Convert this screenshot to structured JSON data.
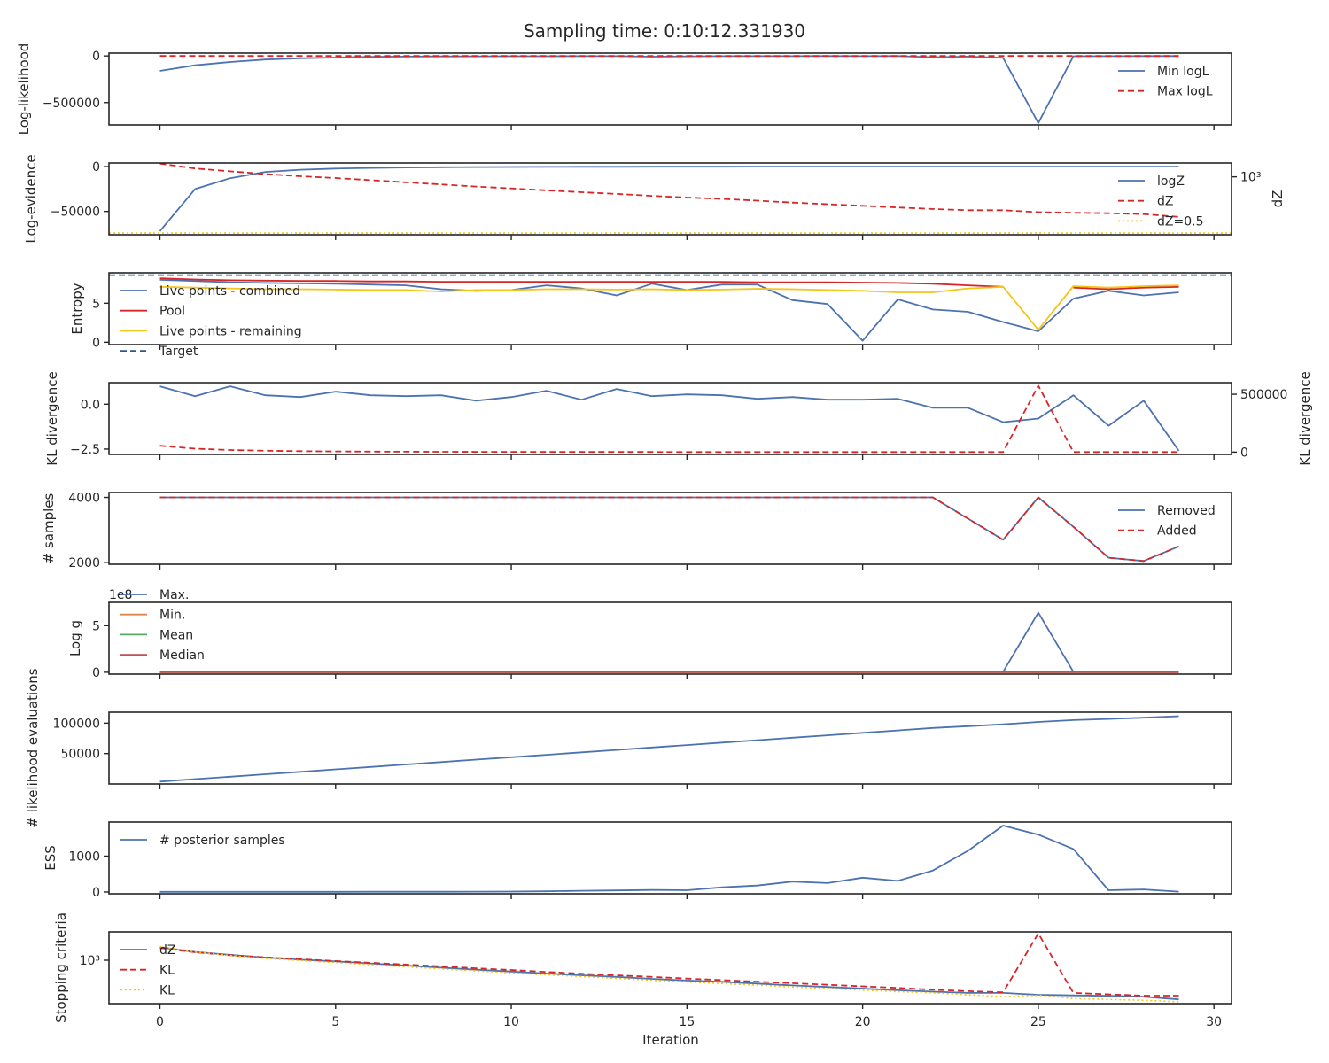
{
  "title": "Sampling time: 0:10:12.331930",
  "xlabel": "Iteration",
  "x_ticks": [
    0,
    5,
    10,
    15,
    20,
    25,
    30
  ],
  "colors": {
    "blue": "#4c72b0",
    "red": "#d62728",
    "gold": "#f5c518",
    "orange": "#dd8452",
    "green": "#55a868",
    "crimson": "#c44e52",
    "navy": "#2e5a8a",
    "axis": "#262626"
  },
  "chart_data": [
    {
      "type": "line",
      "ylabel": "Log-likelihood",
      "yticks": [
        "0",
        "−500000"
      ],
      "ytick_values": [
        0,
        -500000
      ],
      "ylim": [
        -740000,
        30000
      ],
      "legend_position": "right",
      "series": [
        {
          "name": "Min logL",
          "color": "blue",
          "dash": "solid",
          "values": [
            -160000,
            -100000,
            -65000,
            -38000,
            -25000,
            -18000,
            -10000,
            -7000,
            -5000,
            -4000,
            -3000,
            -3000,
            -2500,
            -2500,
            -8000,
            -4000,
            -2000,
            -2000,
            -2000,
            -1500,
            -2000,
            -1500,
            -14000,
            -7000,
            -20000,
            -720000,
            -3000,
            -2000,
            -1500,
            -1500
          ]
        },
        {
          "name": "Max logL",
          "color": "red",
          "dash": "dashed",
          "values": [
            0,
            0,
            0,
            0,
            0,
            0,
            0,
            0,
            0,
            0,
            0,
            0,
            0,
            0,
            0,
            0,
            0,
            0,
            0,
            0,
            0,
            0,
            0,
            0,
            0,
            0,
            0,
            0,
            0,
            0
          ]
        }
      ]
    },
    {
      "type": "line",
      "ylabel": "Log-evidence",
      "yticks": [
        "0",
        "−50000"
      ],
      "ytick_values": [
        0,
        -50000
      ],
      "ylim": [
        -76000,
        4000
      ],
      "right_ylabel": "dZ",
      "right_tick_label": "10³",
      "right_scale": "log",
      "legend_position": "right",
      "series": [
        {
          "name": "logZ",
          "color": "blue",
          "dash": "solid",
          "axis": "left",
          "values": [
            -72000,
            -25000,
            -13000,
            -6000,
            -3500,
            -2200,
            -1500,
            -1000,
            -700,
            -500,
            -400,
            -300,
            -250,
            -200,
            -150,
            -120,
            -100,
            -80,
            -70,
            -60,
            -50,
            -45,
            -40,
            -35,
            -30,
            -28,
            -26,
            -25,
            -24,
            -23
          ]
        },
        {
          "name": "dZ",
          "color": "red",
          "dash": "dashed",
          "axis": "right",
          "values": [
            6000,
            3100,
            2100,
            1450,
            1080,
            850,
            640,
            480,
            360,
            270,
            210,
            160,
            125,
            100,
            77,
            61,
            51,
            40,
            31,
            25,
            20,
            16,
            13,
            11,
            11,
            8.5,
            7.8,
            7.3,
            6.5,
            4.5
          ]
        },
        {
          "name": "dZ=0.5",
          "color": "gold",
          "dash": "dotted",
          "axis": "right",
          "constant": true,
          "values": [
            0.5,
            0.5,
            0.5,
            0.5,
            0.5,
            0.5,
            0.5,
            0.5,
            0.5,
            0.5,
            0.5,
            0.5,
            0.5,
            0.5,
            0.5,
            0.5,
            0.5,
            0.5,
            0.5,
            0.5,
            0.5,
            0.5,
            0.5,
            0.5,
            0.5,
            0.5,
            0.5,
            0.5,
            0.5,
            0.5
          ]
        }
      ]
    },
    {
      "type": "line",
      "ylabel": "Entropy",
      "yticks": [
        "0",
        "5"
      ],
      "ytick_values": [
        0,
        5
      ],
      "ylim": [
        -0.3,
        8.9
      ],
      "legend_position": "left",
      "series": [
        {
          "name": "Live points - combined",
          "color": "blue",
          "dash": "solid",
          "values": [
            8.0,
            7.85,
            7.7,
            7.6,
            7.55,
            7.5,
            7.4,
            7.3,
            6.8,
            6.6,
            6.7,
            7.3,
            6.9,
            6.0,
            7.5,
            6.7,
            7.4,
            7.4,
            5.4,
            4.9,
            0.2,
            5.5,
            4.2,
            3.9,
            2.6,
            1.4,
            5.6,
            6.6,
            6.0,
            6.4
          ]
        },
        {
          "name": "Pool",
          "color": "red",
          "dash": "solid",
          "values": [
            8.2,
            8.05,
            7.95,
            7.9,
            7.85,
            7.85,
            7.8,
            7.8,
            7.75,
            7.75,
            7.75,
            7.75,
            7.75,
            7.75,
            7.75,
            7.75,
            7.75,
            7.7,
            7.7,
            7.7,
            7.65,
            7.6,
            7.5,
            7.3,
            7.1,
            null,
            7.0,
            6.8,
            7.0,
            7.1
          ]
        },
        {
          "name": "Live points - remaining",
          "color": "gold",
          "dash": "solid",
          "values": [
            7.1,
            7.0,
            6.9,
            6.8,
            6.8,
            6.75,
            6.7,
            6.7,
            6.5,
            6.7,
            6.7,
            6.8,
            6.8,
            6.75,
            6.8,
            6.7,
            6.75,
            6.85,
            6.8,
            6.7,
            6.6,
            6.4,
            6.4,
            6.9,
            7.1,
            1.6,
            7.2,
            7.0,
            7.2,
            7.3
          ]
        },
        {
          "name": "Target",
          "color": "navy",
          "dash": "dashed",
          "constant": true,
          "values": [
            8.6,
            8.6,
            8.6,
            8.6,
            8.6,
            8.6,
            8.6,
            8.6,
            8.6,
            8.6,
            8.6,
            8.6,
            8.6,
            8.6,
            8.6,
            8.6,
            8.6,
            8.6,
            8.6,
            8.6,
            8.6,
            8.6,
            8.6,
            8.6,
            8.6,
            8.6,
            8.6,
            8.6,
            8.6,
            8.6
          ]
        }
      ]
    },
    {
      "type": "line",
      "ylabel": "KL divergence",
      "yticks": [
        "0.0",
        "−2.5"
      ],
      "ytick_values": [
        0,
        -2.5
      ],
      "ylim": [
        -2.8,
        1.2
      ],
      "right_ylabel": "KL divergence",
      "right_yticks": [
        "500000",
        "0"
      ],
      "right_ytick_values": [
        500000,
        0
      ],
      "right_ylim": [
        -20000,
        600000
      ],
      "series": [
        {
          "color": "blue",
          "dash": "solid",
          "axis": "left",
          "values": [
            1.0,
            0.45,
            1.0,
            0.5,
            0.4,
            0.7,
            0.5,
            0.45,
            0.5,
            0.2,
            0.4,
            0.75,
            0.25,
            0.85,
            0.45,
            0.55,
            0.5,
            0.3,
            0.4,
            0.25,
            0.25,
            0.3,
            -0.2,
            -0.2,
            -1.0,
            -0.8,
            0.5,
            -1.2,
            0.2,
            -2.6
          ]
        },
        {
          "color": "red",
          "dash": "dashed",
          "axis": "right",
          "values": [
            55000,
            30000,
            18000,
            12000,
            8000,
            6000,
            4500,
            3500,
            3000,
            2500,
            2000,
            1800,
            1500,
            1300,
            1100,
            1000,
            900,
            800,
            700,
            600,
            500,
            450,
            400,
            350,
            300,
            575000,
            500,
            400,
            350,
            300
          ]
        }
      ]
    },
    {
      "type": "line",
      "ylabel": "# samples",
      "yticks": [
        "4000",
        "2000"
      ],
      "ytick_values": [
        4000,
        2000
      ],
      "ylim": [
        1950,
        4150
      ],
      "legend_position": "right",
      "series": [
        {
          "name": "Removed",
          "color": "blue",
          "dash": "solid",
          "values": [
            4000,
            4000,
            4000,
            4000,
            4000,
            4000,
            4000,
            4000,
            4000,
            4000,
            4000,
            4000,
            4000,
            4000,
            4000,
            4000,
            4000,
            4000,
            4000,
            4000,
            4000,
            4000,
            4000,
            3350,
            2700,
            4000,
            3100,
            2150,
            2050,
            2500
          ]
        },
        {
          "name": "Added",
          "color": "red",
          "dash": "dashed",
          "values": [
            4000,
            4000,
            4000,
            4000,
            4000,
            4000,
            4000,
            4000,
            4000,
            4000,
            4000,
            4000,
            4000,
            4000,
            4000,
            4000,
            4000,
            4000,
            4000,
            4000,
            4000,
            4000,
            4000,
            3350,
            2700,
            4000,
            3100,
            2150,
            2050,
            2500
          ]
        }
      ]
    },
    {
      "type": "line",
      "ylabel": "Log g",
      "yticks": [
        "0",
        "5"
      ],
      "ytick_values": [
        0,
        5
      ],
      "ylim": [
        -0.2,
        7.5
      ],
      "offset_text": "1e8",
      "legend_position": "left",
      "series": [
        {
          "name": "Max.",
          "color": "blue",
          "dash": "solid",
          "values": [
            0.05,
            0.05,
            0.05,
            0.05,
            0.05,
            0.05,
            0.05,
            0.05,
            0.05,
            0.05,
            0.05,
            0.05,
            0.05,
            0.05,
            0.05,
            0.05,
            0.05,
            0.05,
            0.05,
            0.05,
            0.05,
            0.05,
            0.05,
            0.05,
            0.05,
            6.4,
            0.05,
            0.05,
            0.05,
            0.05
          ]
        },
        {
          "name": "Min.",
          "color": "orange",
          "dash": "solid",
          "values": [
            0,
            0,
            0,
            0,
            0,
            0,
            0,
            0,
            0,
            0,
            0,
            0,
            0,
            0,
            0,
            0,
            0,
            0,
            0,
            0,
            0,
            0,
            0,
            0,
            0,
            0,
            0,
            0,
            0,
            0
          ]
        },
        {
          "name": "Mean",
          "color": "green",
          "dash": "solid",
          "values": [
            0,
            0,
            0,
            0,
            0,
            0,
            0,
            0,
            0,
            0,
            0,
            0,
            0,
            0,
            0,
            0,
            0,
            0,
            0,
            0,
            0,
            0,
            0,
            0,
            0,
            0,
            0,
            0,
            0,
            0
          ]
        },
        {
          "name": "Median",
          "color": "crimson",
          "dash": "solid",
          "values": [
            0,
            0,
            0,
            0,
            0,
            0,
            0,
            0,
            0,
            0,
            0,
            0,
            0,
            0,
            0,
            0,
            0,
            0,
            0,
            0,
            0,
            0,
            0,
            0,
            0,
            0,
            0,
            0,
            0,
            0
          ]
        }
      ]
    },
    {
      "type": "line",
      "ylabel": "# likelihood evaluations",
      "yticks": [
        "100000",
        "50000"
      ],
      "ytick_values": [
        100000,
        50000
      ],
      "ylim": [
        0,
        118000
      ],
      "series": [
        {
          "color": "blue",
          "dash": "solid",
          "values": [
            4000,
            8000,
            12000,
            16000,
            20000,
            24000,
            28000,
            32000,
            36000,
            40000,
            44000,
            48000,
            52000,
            56000,
            60000,
            64000,
            68000,
            72000,
            76000,
            80000,
            84000,
            88000,
            92000,
            95000,
            98000,
            102000,
            105000,
            107000,
            109000,
            111500
          ]
        }
      ]
    },
    {
      "type": "line",
      "ylabel": "ESS",
      "yticks": [
        "1000",
        "0"
      ],
      "ytick_values": [
        1000,
        0
      ],
      "ylim": [
        -50,
        1950
      ],
      "legend_position": "left",
      "series": [
        {
          "name": "# posterior samples",
          "color": "blue",
          "dash": "solid",
          "values": [
            5,
            5,
            5,
            5,
            5,
            5,
            6,
            7,
            8,
            10,
            12,
            20,
            35,
            45,
            55,
            50,
            130,
            180,
            290,
            250,
            400,
            310,
            600,
            1150,
            1850,
            1600,
            1200,
            50,
            70,
            10
          ]
        }
      ]
    },
    {
      "type": "line",
      "ylabel": "Stopping criteria",
      "yticks": [
        "10³"
      ],
      "ytick_values": [
        1000
      ],
      "yscale": "log",
      "ylim": [
        2.5,
        50000
      ],
      "legend_position": "left",
      "series": [
        {
          "name": "dZ",
          "color": "blue",
          "dash": "solid",
          "values": [
            6000,
            3100,
            2100,
            1450,
            1080,
            850,
            640,
            480,
            360,
            270,
            210,
            160,
            125,
            100,
            77,
            61,
            51,
            40,
            31,
            25,
            20,
            16,
            13,
            11,
            11,
            8.5,
            7.8,
            7.3,
            6.5,
            4.5
          ]
        },
        {
          "name": "KL",
          "color": "red",
          "dash": "dashed",
          "values": [
            5500,
            3000,
            2000,
            1500,
            1150,
            900,
            700,
            550,
            430,
            330,
            260,
            200,
            155,
            125,
            100,
            80,
            65,
            52,
            42,
            34,
            27,
            22,
            17,
            14,
            12,
            40000,
            11,
            9,
            7.5,
            7.5
          ]
        },
        {
          "name": "KL",
          "color": "gold",
          "dash": "dotted",
          "values": [
            6500,
            3200,
            1900,
            1300,
            950,
            720,
            540,
            400,
            300,
            230,
            175,
            135,
            105,
            82,
            64,
            50,
            40,
            32,
            25,
            20,
            16,
            13,
            11,
            8.5,
            6.5,
            8,
            5,
            4.5,
            4,
            3.2
          ]
        }
      ]
    }
  ]
}
